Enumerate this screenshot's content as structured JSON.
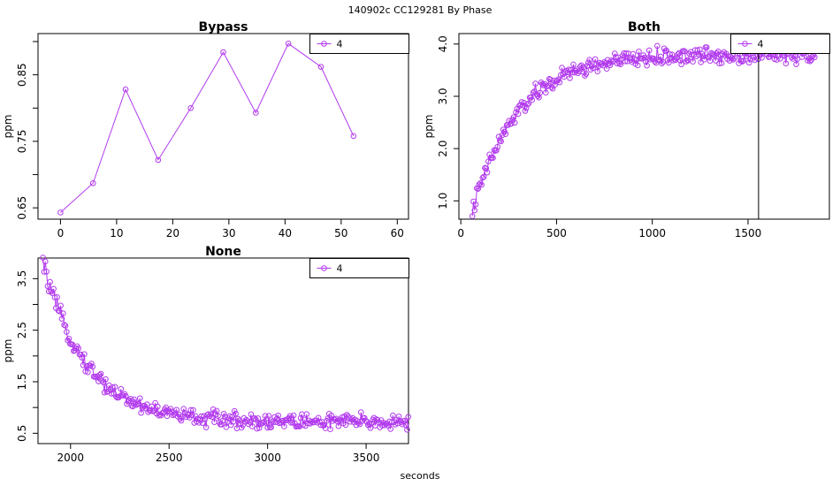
{
  "header": {
    "text": "140902c    CC129281   By Phase"
  },
  "xlabel": "seconds",
  "colors": {
    "series": "#B23AEE",
    "axis": "#000000"
  },
  "chart_data": [
    {
      "id": "bypass",
      "type": "line",
      "title": "Bypass",
      "ylabel": "ppm",
      "xlim": [
        -4,
        62
      ],
      "ylim": [
        0.633,
        0.912
      ],
      "xticks": [
        0,
        10,
        20,
        30,
        40,
        50,
        60
      ],
      "yticks": [
        0.65,
        0.7,
        0.75,
        0.8,
        0.85,
        0.9
      ],
      "ytick_labels": [
        "0.65",
        "",
        "0.75",
        "",
        "0.85",
        ""
      ],
      "legend": {
        "position": "top-right",
        "label": "4"
      },
      "series": [
        {
          "name": "4",
          "x": [
            0,
            5.8,
            11.6,
            17.4,
            23.2,
            29,
            34.8,
            40.6,
            46.4,
            52.2
          ],
          "y": [
            0.643,
            0.687,
            0.828,
            0.722,
            0.8,
            0.884,
            0.793,
            0.897,
            0.862,
            0.758
          ]
        }
      ]
    },
    {
      "id": "both",
      "type": "scatter",
      "title": "Both",
      "ylabel": "ppm",
      "xlim": [
        -10,
        1925
      ],
      "ylim": [
        0.65,
        4.2
      ],
      "xticks": [
        0,
        500,
        1000,
        1500
      ],
      "yticks": [
        1.0,
        2.0,
        3.0,
        4.0
      ],
      "ytick_labels": [
        "1.0",
        "2.0",
        "3.0",
        "4.0"
      ],
      "vline_x": 1555,
      "legend": {
        "position": "top-right",
        "label": "4"
      },
      "curve": {
        "x_start": 60,
        "x_end": 1850,
        "step": 6,
        "y0": 0.8,
        "y_inf": 3.8,
        "tau": 240,
        "x_offset": 60,
        "noise": 0.1
      },
      "series": [
        {
          "name": "4"
        }
      ]
    },
    {
      "id": "none",
      "type": "scatter",
      "title": "None",
      "ylabel": "ppm",
      "xlim": [
        1835,
        3715
      ],
      "ylim": [
        0.3,
        3.9
      ],
      "xticks": [
        2000,
        2500,
        3000,
        3500
      ],
      "yticks": [
        0.5,
        1.0,
        1.5,
        2.0,
        2.5,
        3.0,
        3.5
      ],
      "ytick_labels": [
        "0.5",
        "",
        "1.5",
        "",
        "2.5",
        "",
        "3.5"
      ],
      "legend": {
        "position": "top-right",
        "label": "4"
      },
      "curve": {
        "x_start": 1860,
        "x_end": 3715,
        "step": 6,
        "y0": 3.8,
        "y_inf": 0.72,
        "tau": 220,
        "x_offset": 1860,
        "noise": 0.1
      },
      "series": [
        {
          "name": "4"
        }
      ]
    }
  ]
}
